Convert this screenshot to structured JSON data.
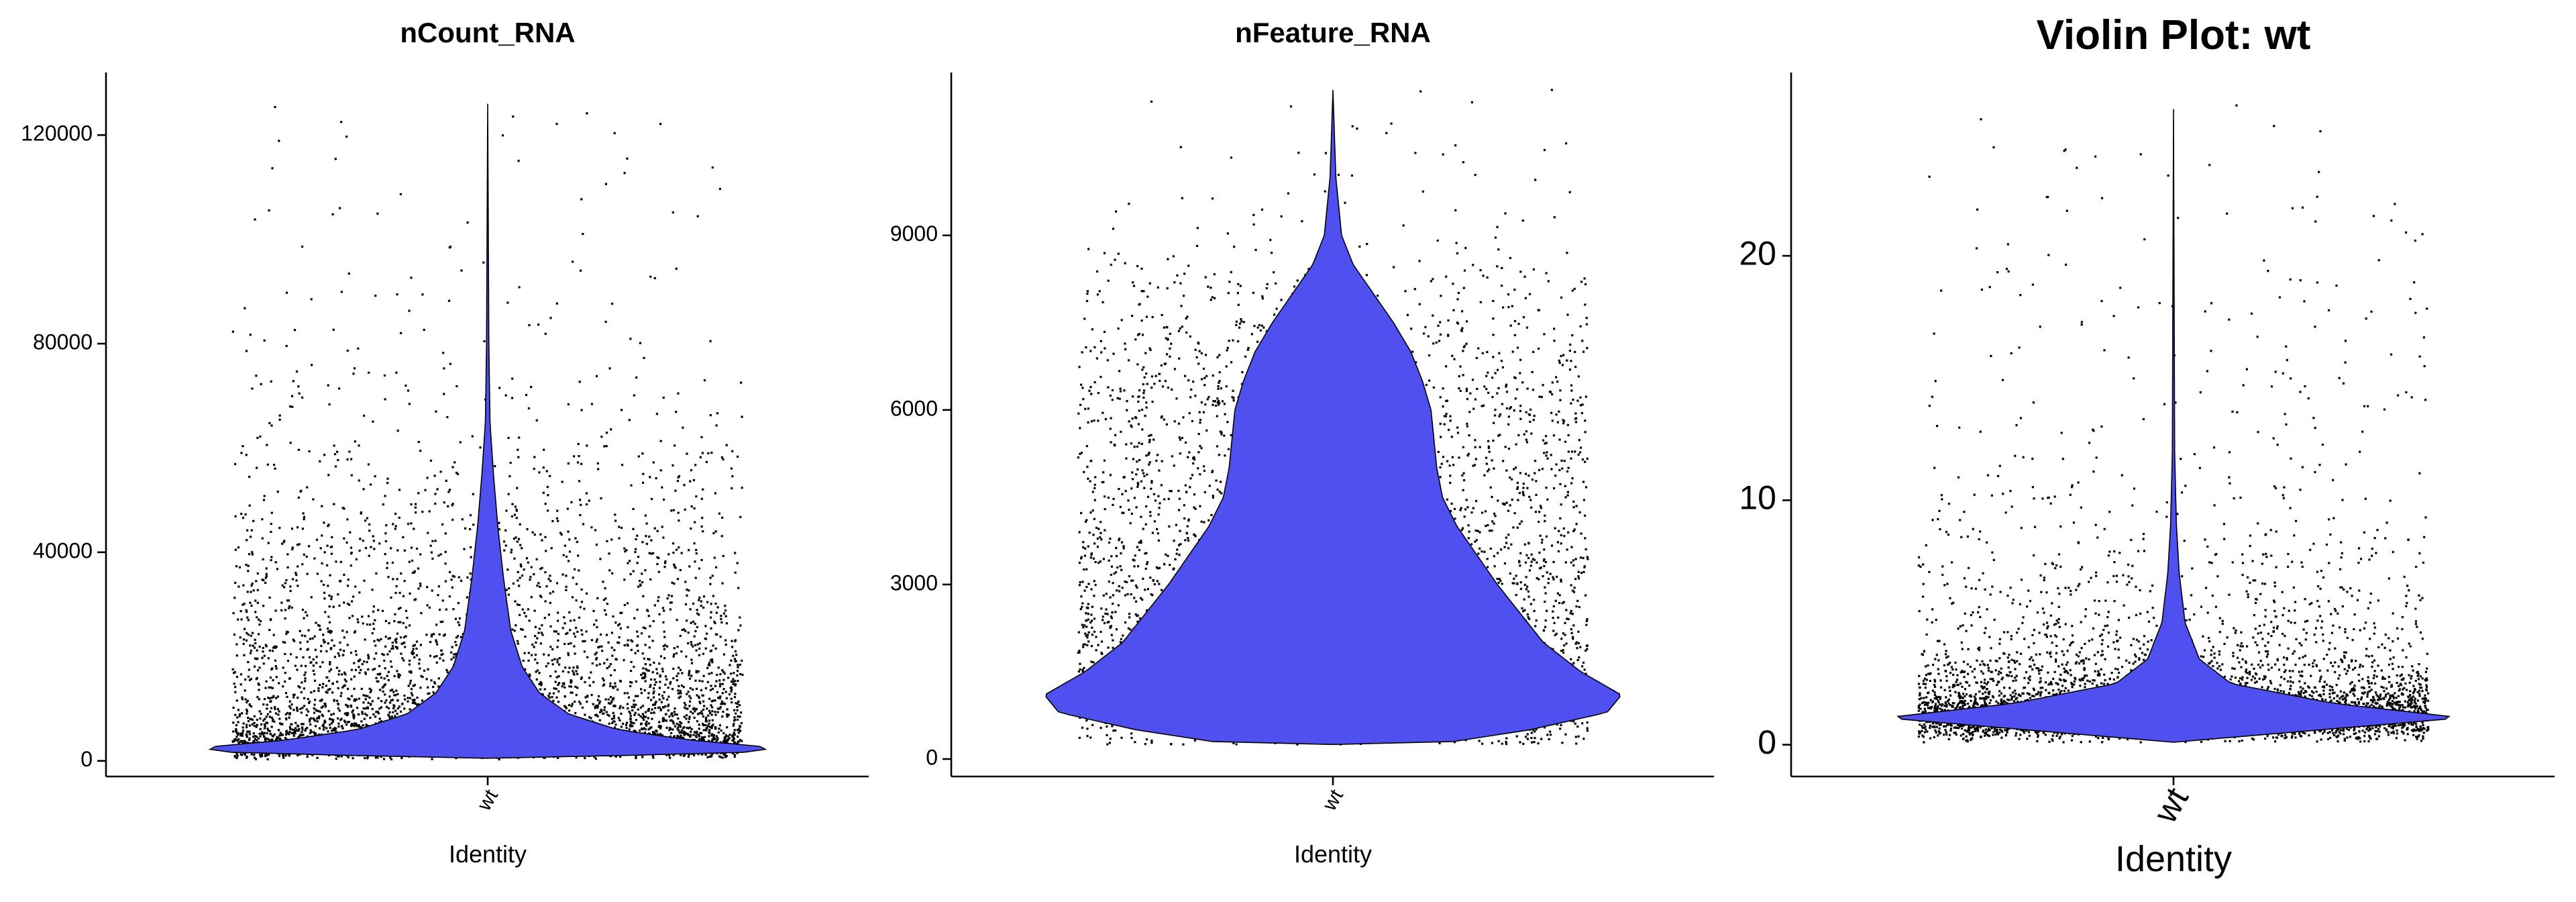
{
  "chart_data": [
    {
      "type": "violin",
      "title": "nCount_RNA",
      "xlabel": "Identity",
      "ylabel": "",
      "categories": [
        "wt"
      ],
      "ylim": [
        -3000,
        132000
      ],
      "yticks": [
        0,
        40000,
        80000,
        120000
      ],
      "yticklabels": [
        "0",
        "40000",
        "80000",
        "120000"
      ],
      "fill_color": "#5050f0",
      "points": "jittered, about 8,000 cells",
      "density_profile": [
        {
          "y": 500,
          "halfwidth": 0.0
        },
        {
          "y": 1500,
          "halfwidth": 0.87
        },
        {
          "y": 2500,
          "halfwidth": 1.0
        },
        {
          "y": 4000,
          "halfwidth": 0.7
        },
        {
          "y": 6000,
          "halfwidth": 0.45
        },
        {
          "y": 9000,
          "halfwidth": 0.28
        },
        {
          "y": 13000,
          "halfwidth": 0.18
        },
        {
          "y": 18000,
          "halfwidth": 0.12
        },
        {
          "y": 25000,
          "halfwidth": 0.08
        },
        {
          "y": 35000,
          "halfwidth": 0.055
        },
        {
          "y": 45000,
          "halfwidth": 0.035
        },
        {
          "y": 55000,
          "halfwidth": 0.02
        },
        {
          "y": 65000,
          "halfwidth": 0.008
        },
        {
          "y": 80000,
          "halfwidth": 0.004
        },
        {
          "y": 126000,
          "halfwidth": 0.0
        }
      ],
      "min": 300,
      "max": 126000,
      "median_approx": 2500
    },
    {
      "type": "violin",
      "title": "nFeature_RNA",
      "xlabel": "Identity",
      "ylabel": "",
      "categories": [
        "wt"
      ],
      "ylim": [
        -300,
        11800
      ],
      "yticks": [
        0,
        3000,
        6000,
        9000
      ],
      "yticklabels": [
        "0",
        "3000",
        "6000",
        "9000"
      ],
      "fill_color": "#5050f0",
      "points": "jittered, about 8,000 cells",
      "density_profile": [
        {
          "y": 250,
          "halfwidth": 0.35
        },
        {
          "y": 500,
          "halfwidth": 0.68
        },
        {
          "y": 800,
          "halfwidth": 0.95
        },
        {
          "y": 1100,
          "halfwidth": 1.0
        },
        {
          "y": 1500,
          "halfwidth": 0.86
        },
        {
          "y": 2000,
          "halfwidth": 0.73
        },
        {
          "y": 2500,
          "halfwidth": 0.65
        },
        {
          "y": 3000,
          "halfwidth": 0.57
        },
        {
          "y": 3500,
          "halfwidth": 0.5
        },
        {
          "y": 4000,
          "halfwidth": 0.43
        },
        {
          "y": 4500,
          "halfwidth": 0.38
        },
        {
          "y": 5000,
          "halfwidth": 0.36
        },
        {
          "y": 5500,
          "halfwidth": 0.35
        },
        {
          "y": 6000,
          "halfwidth": 0.34
        },
        {
          "y": 6500,
          "halfwidth": 0.31
        },
        {
          "y": 7000,
          "halfwidth": 0.27
        },
        {
          "y": 7500,
          "halfwidth": 0.21
        },
        {
          "y": 8000,
          "halfwidth": 0.14
        },
        {
          "y": 8500,
          "halfwidth": 0.07
        },
        {
          "y": 9000,
          "halfwidth": 0.03
        },
        {
          "y": 10000,
          "halfwidth": 0.01
        },
        {
          "y": 11500,
          "halfwidth": 0.0
        }
      ],
      "min": 250,
      "max": 11500,
      "median_approx": 2200
    },
    {
      "type": "violin",
      "title": "Violin Plot: wt",
      "xlabel": "Identity",
      "ylabel": "",
      "categories": [
        "wt"
      ],
      "ylim": [
        -1.3,
        27.5
      ],
      "yticks": [
        0,
        10,
        20
      ],
      "yticklabels": [
        "0",
        "10",
        "20"
      ],
      "fill_color": "#5050f0",
      "points": "jittered, about 8,000 cells",
      "density_profile": [
        {
          "y": 0.1,
          "halfwidth": 0.0
        },
        {
          "y": 0.6,
          "halfwidth": 0.5
        },
        {
          "y": 1.1,
          "halfwidth": 1.0
        },
        {
          "y": 1.7,
          "halfwidth": 0.55
        },
        {
          "y": 2.5,
          "halfwidth": 0.2
        },
        {
          "y": 3.5,
          "halfwidth": 0.09
        },
        {
          "y": 5,
          "halfwidth": 0.04
        },
        {
          "y": 7,
          "halfwidth": 0.02
        },
        {
          "y": 9,
          "halfwidth": 0.01
        },
        {
          "y": 12,
          "halfwidth": 0.004
        },
        {
          "y": 26,
          "halfwidth": 0.0
        }
      ],
      "min": 0.1,
      "max": 26.5,
      "median_approx": 1.1
    }
  ]
}
